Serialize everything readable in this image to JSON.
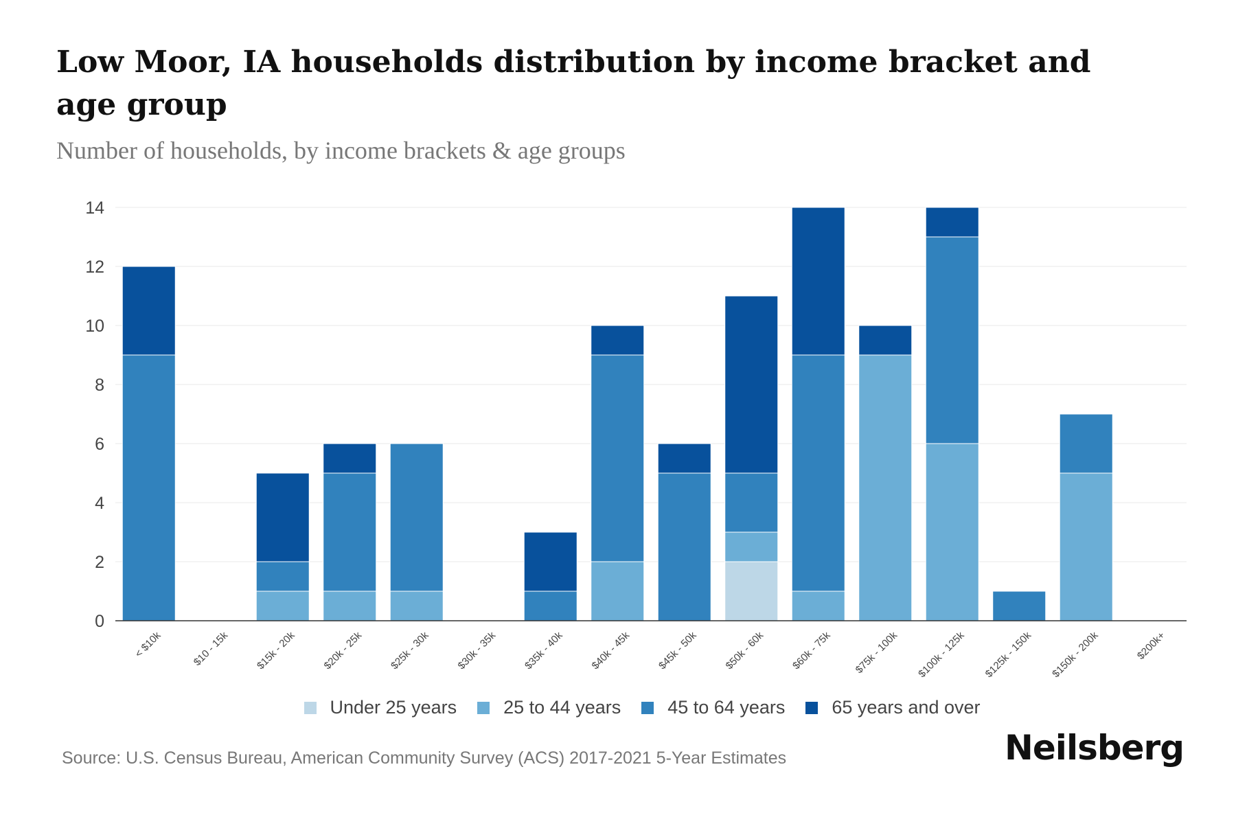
{
  "title": "Low Moor, IA households distribution by income bracket and age group",
  "subtitle": "Number of households, by income brackets & age groups",
  "source": "Source: U.S. Census Bureau, American Community Survey (ACS) 2017-2021 5-Year Estimates",
  "brand": "Neilsberg",
  "chart_data": {
    "type": "bar",
    "stacked": true,
    "title": "Low Moor, IA households distribution by income bracket and age group",
    "subtitle": "Number of households, by income brackets & age groups",
    "xlabel": "",
    "ylabel": "",
    "ylim": [
      0,
      14
    ],
    "yticks": [
      0,
      2,
      4,
      6,
      8,
      10,
      12,
      14
    ],
    "grid": true,
    "legend_position": "bottom",
    "categories": [
      "< $10k",
      "$10 - 15k",
      "$15k - 20k",
      "$20k - 25k",
      "$25k - 30k",
      "$30k - 35k",
      "$35k - 40k",
      "$40k - 45k",
      "$45k - 50k",
      "$50k - 60k",
      "$60k - 75k",
      "$75k - 100k",
      "$100k - 125k",
      "$125k - 150k",
      "$150k - 200k",
      "$200k+"
    ],
    "series": [
      {
        "name": "Under 25 years",
        "color": "#bdd7e7",
        "values": [
          0,
          0,
          0,
          0,
          0,
          0,
          0,
          0,
          0,
          2,
          0,
          0,
          0,
          0,
          0,
          0
        ]
      },
      {
        "name": "25 to 44 years",
        "color": "#6baed6",
        "values": [
          0,
          0,
          1,
          1,
          1,
          0,
          0,
          2,
          0,
          1,
          1,
          9,
          6,
          0,
          5,
          0
        ]
      },
      {
        "name": "45 to 64 years",
        "color": "#3182bd",
        "values": [
          9,
          0,
          1,
          4,
          5,
          0,
          1,
          7,
          5,
          2,
          8,
          0,
          7,
          1,
          2,
          0
        ]
      },
      {
        "name": "65 years and over",
        "color": "#08519c",
        "values": [
          3,
          0,
          3,
          1,
          0,
          0,
          2,
          1,
          1,
          6,
          5,
          1,
          1,
          0,
          0,
          0
        ]
      }
    ]
  }
}
